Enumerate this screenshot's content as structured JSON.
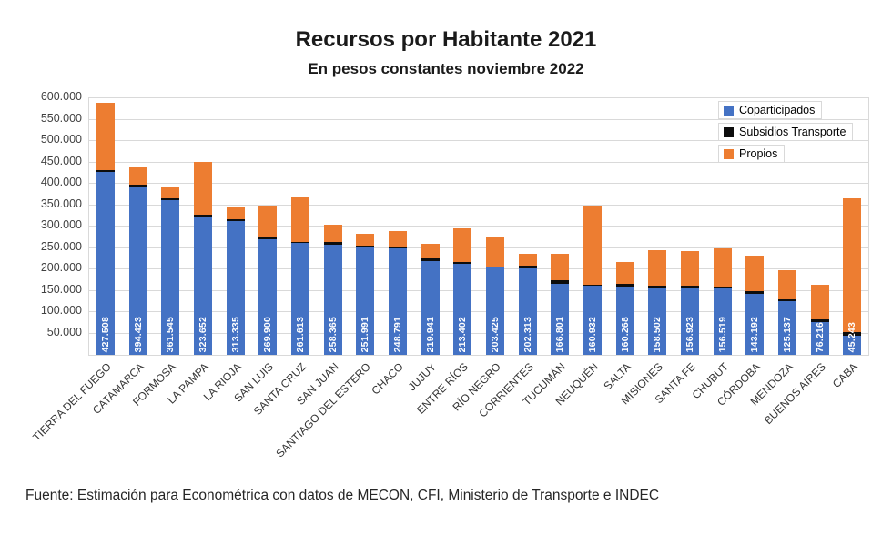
{
  "footer": "Fuente: Estimación para Econométrica con datos de MECON, CFI, Ministerio de Transporte e INDEC",
  "chart_data": {
    "type": "bar",
    "stacked": true,
    "title": "Recursos por Habitante 2021",
    "subtitle": "En pesos constantes noviembre 2022",
    "grid": true,
    "legend_position": "top-right",
    "ylim": [
      0,
      600000
    ],
    "ytick_step": 50000,
    "ytick_labels": [
      "600.000",
      "550.000",
      "500.000",
      "450.000",
      "400.000",
      "350.000",
      "300.000",
      "250.000",
      "200.000",
      "150.000",
      "100.000",
      "50.000"
    ],
    "categories": [
      "TIERRA DEL FUEGO",
      "CATAMARCA",
      "FORMOSA",
      "LA PAMPA",
      "LA RIOJA",
      "SAN LUIS",
      "SANTA CRUZ",
      "SAN JUAN",
      "SANTIAGO DEL ESTERO",
      "CHACO",
      "JUJUY",
      "ENTRE RÍOS",
      "RÍO NEGRO",
      "CORRIENTES",
      "TUCUMÁN",
      "NEUQUÉN",
      "SALTA",
      "MISIONES",
      "SANTA FE",
      "CHUBUT",
      "CÓRDOBA",
      "MENDOZA",
      "BUENOS AIRES",
      "CABA"
    ],
    "series": [
      {
        "name": "Coparticipados",
        "color": "#4472C4",
        "values": [
          427508,
          394423,
          361545,
          323652,
          313335,
          269900,
          261613,
          258365,
          251991,
          248791,
          219941,
          213402,
          203425,
          202313,
          166801,
          160932,
          160268,
          158502,
          156923,
          156519,
          143192,
          125137,
          76216,
          45243
        ]
      },
      {
        "name": "Subsidios Transporte",
        "color": "#0d0d0d",
        "values": [
          5000,
          3000,
          4000,
          5000,
          4000,
          4000,
          3000,
          5000,
          4000,
          5000,
          6000,
          4000,
          3000,
          6000,
          7000,
          3000,
          5000,
          4000,
          4000,
          3000,
          6000,
          5000,
          6000,
          8000
        ]
      },
      {
        "name": "Propios",
        "color": "#ED7D31",
        "values": [
          157000,
          43000,
          25000,
          123000,
          27000,
          75000,
          105000,
          42000,
          28000,
          36000,
          34000,
          78000,
          70000,
          28000,
          62000,
          186000,
          51000,
          82000,
          82000,
          90000,
          83000,
          68000,
          81000,
          312000
        ]
      }
    ],
    "bar_value_labels": [
      "427.508",
      "394.423",
      "361.545",
      "323.652",
      "313.335",
      "269.900",
      "261.613",
      "258.365",
      "251.991",
      "248.791",
      "219.941",
      "213.402",
      "203.425",
      "202.313",
      "166.801",
      "160.932",
      "160.268",
      "158.502",
      "156.923",
      "156.519",
      "143.192",
      "125.137",
      "76.216",
      "45.243"
    ]
  }
}
